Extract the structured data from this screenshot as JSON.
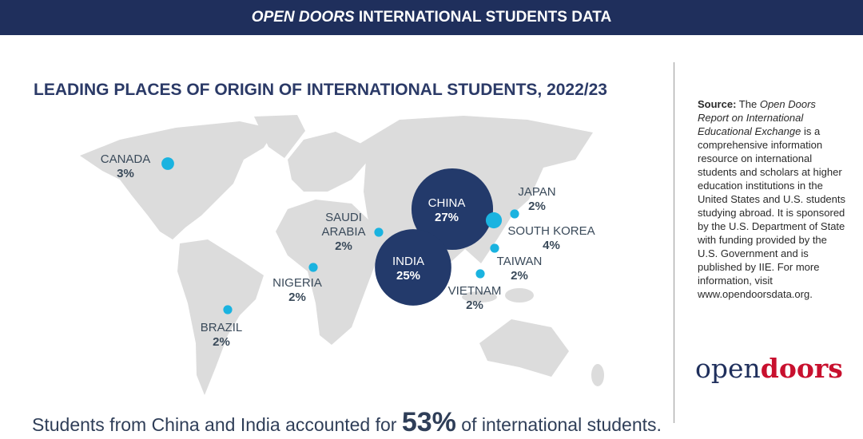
{
  "header": {
    "title_italic": "OPEN DOORS",
    "title_rest": "INTERNATIONAL STUDENTS DATA"
  },
  "map": {
    "title": "LEADING PLACES OF ORIGIN OF INTERNATIONAL STUDENTS, 2022/23",
    "places": [
      {
        "name": "CANADA",
        "value": 3,
        "value_label": "3%",
        "color": "#1ab3e0"
      },
      {
        "name": "CHINA",
        "value": 27,
        "value_label": "27%",
        "color": "#233a6b"
      },
      {
        "name": "INDIA",
        "value": 25,
        "value_label": "25%",
        "color": "#233a6b"
      },
      {
        "name": "SOUTH KOREA",
        "value": 4,
        "value_label": "4%",
        "color": "#1ab3e0"
      },
      {
        "name": "JAPAN",
        "value": 2,
        "value_label": "2%",
        "color": "#1ab3e0"
      },
      {
        "name": "SAUDI ARABIA",
        "value": 2,
        "value_label": "2%",
        "color": "#1ab3e0"
      },
      {
        "name": "NIGERIA",
        "value": 2,
        "value_label": "2%",
        "color": "#1ab3e0"
      },
      {
        "name": "BRAZIL",
        "value": 2,
        "value_label": "2%",
        "color": "#1ab3e0"
      },
      {
        "name": "VIETNAM",
        "value": 2,
        "value_label": "2%",
        "color": "#1ab3e0"
      },
      {
        "name": "TAIWAN",
        "value": 2,
        "value_label": "2%",
        "color": "#1ab3e0"
      }
    ]
  },
  "footer": {
    "before": "Students from China and India accounted for",
    "highlight": "53%",
    "after": "of international students."
  },
  "source": {
    "label": "Source:",
    "text1": "The",
    "italic": "Open Doors Report on International Educational Exchange",
    "text2": "is a comprehensive information resource on international students and scholars at higher education institutions in the United States and U.S. students studying abroad. It is sponsored by the U.S. Department of State with funding provided by the U.S. Government and is published by IIE. For more information, visit www.opendoorsdata.org."
  },
  "logo": {
    "part1": "open",
    "part2": "doors"
  }
}
